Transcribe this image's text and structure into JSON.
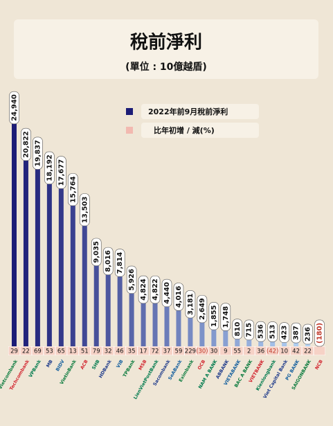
{
  "chart_data": {
    "type": "bar",
    "title": "稅前淨利",
    "subtitle": "(單位 : 10億越盾)",
    "legend": [
      "2022年前9月稅前淨利",
      "比年初增 / 減(%)"
    ],
    "categories": [
      "Vietcombank",
      "Techcombank",
      "VPBank",
      "MB",
      "BIDV",
      "VietinBank",
      "ACB",
      "SHB",
      "HDBank",
      "VIB",
      "TPBank",
      "MSB",
      "LienVietPostBank",
      "Sacombank",
      "SeABank",
      "Eximbank",
      "OCB",
      "NAM A BANK",
      "ABBANK",
      "VIETABANK",
      "BAC A BANK",
      "VIETBANK",
      "Kienlongbank",
      "Viet Capital Bank",
      "PG BANK",
      "SAIGONBANK",
      "NCB"
    ],
    "values": [
      24940,
      20822,
      19837,
      18192,
      17677,
      15764,
      13503,
      9035,
      8016,
      7814,
      5926,
      4824,
      4822,
      4440,
      4016,
      3181,
      2649,
      1855,
      1748,
      810,
      715,
      536,
      513,
      423,
      387,
      236,
      -180
    ],
    "value_labels": [
      "24,940",
      "20,822",
      "19,837",
      "18,192",
      "17,677",
      "15,764",
      "13,503",
      "9,035",
      "8,016",
      "7,814",
      "5,926",
      "4,824",
      "4,822",
      "4,440",
      "4,016",
      "3,181",
      "2,649",
      "1,855",
      "1,748",
      "810",
      "715",
      "536",
      "513",
      "423",
      "387",
      "236",
      "(180)"
    ],
    "change": [
      29,
      22,
      69,
      53,
      65,
      13,
      51,
      79,
      32,
      46,
      35,
      17,
      72,
      37,
      59,
      229,
      -30,
      30,
      9,
      55,
      2,
      36,
      -42,
      10,
      42,
      22,
      null
    ],
    "change_labels": [
      "29",
      "22",
      "69",
      "53",
      "65",
      "13",
      "51",
      "79",
      "32",
      "46",
      "35",
      "17",
      "72",
      "37",
      "59",
      "229",
      "(30)",
      "30",
      "9",
      "55",
      "2",
      "36",
      "(42)",
      "10",
      "42",
      "22",
      null
    ],
    "colors": [
      "#1c1c76",
      "#b4d4f6"
    ],
    "negative_color": "#f2b9b0",
    "change_color": "#f6d2c6",
    "ylim": [
      0,
      25000
    ]
  }
}
